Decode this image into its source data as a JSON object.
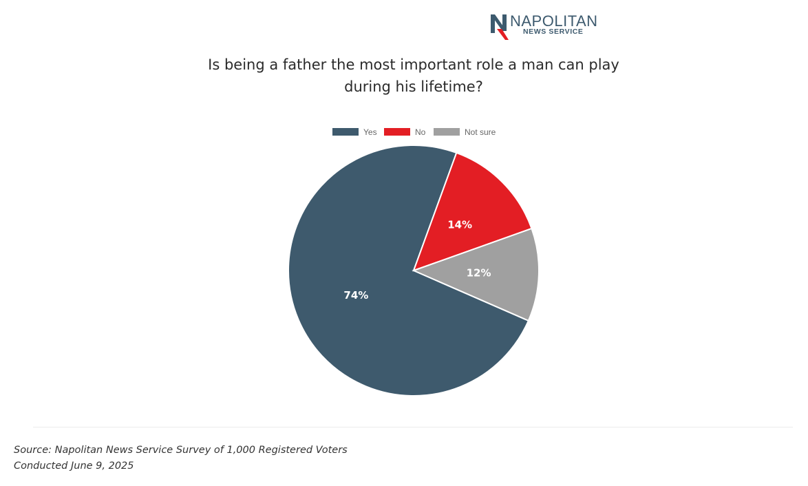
{
  "brand": {
    "name": "NAPOLITAN",
    "subtitle": "NEWS SERVICE",
    "colors": {
      "navy": "#3d5a6e",
      "red": "#e31e24"
    }
  },
  "title_lines": [
    "Is being a father the most important role a man can play",
    "during his lifetime?"
  ],
  "chart_data": {
    "type": "pie",
    "categories": [
      "Yes",
      "No",
      "Not sure"
    ],
    "values": [
      74,
      14,
      12
    ],
    "labels": [
      "74%",
      "14%",
      "12%"
    ],
    "colors": [
      "#3e5a6d",
      "#e31e24",
      "#a0a0a0"
    ],
    "legend": "top",
    "title": "Is being a father the most important role a man can play during his lifetime?"
  },
  "footer": {
    "source_line1": "Source: Napolitan News Service Survey of 1,000 Registered Voters",
    "source_line2": "Conducted June 9, 2025"
  }
}
